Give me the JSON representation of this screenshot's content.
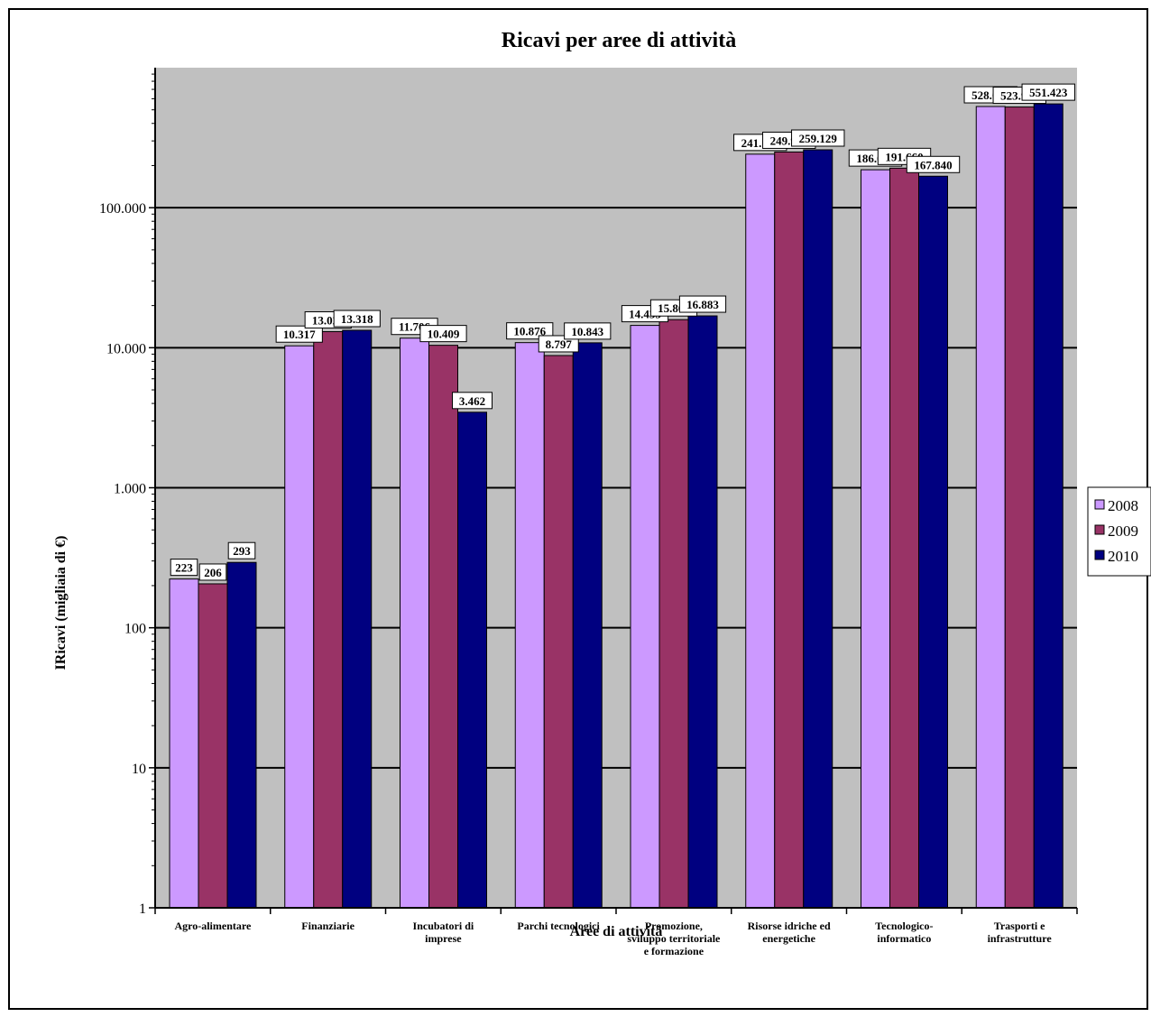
{
  "chart_data": {
    "type": "bar",
    "title": "Ricavi per aree di  attività",
    "xlabel": "Aree di attività",
    "ylabel": "IRicavi (migliaia di €)",
    "yscale": "log",
    "ylim": [
      1,
      1000000
    ],
    "yticks": [
      1,
      10,
      100,
      1000,
      10000,
      100000
    ],
    "ytick_labels": [
      "1",
      "10",
      "100",
      "1.000",
      "10.000",
      "100.000"
    ],
    "grid": true,
    "legend_position": "right",
    "categories": [
      [
        "Agro-alimentare"
      ],
      [
        "Finanziarie"
      ],
      [
        "Incubatori di",
        "imprese"
      ],
      [
        "Parchi tecnologici"
      ],
      [
        "Promozione,",
        "sviluppo territoriale",
        "e formazione"
      ],
      [
        "Risorse idriche ed",
        "energetiche"
      ],
      [
        "Tecnologico-",
        "informatico"
      ],
      [
        "Trasporti e",
        "infrastrutture"
      ]
    ],
    "series": [
      {
        "name": "2008",
        "color": "#cc99ff",
        "values": [
          223,
          10317,
          11706,
          10876,
          14435,
          241181,
          186649,
          528097
        ],
        "labels": [
          "223",
          "10.317",
          "11.706",
          "10.876",
          "14.435",
          "241.181",
          "186.649",
          "528.097"
        ]
      },
      {
        "name": "2009",
        "color": "#993366",
        "values": [
          206,
          13026,
          10409,
          8797,
          15868,
          249917,
          191660,
          523981
        ],
        "labels": [
          "206",
          "13.026",
          "10.409",
          "8.797",
          "15.868",
          "249.917",
          "191.660",
          "523.981"
        ]
      },
      {
        "name": "2010",
        "color": "#000080",
        "values": [
          293,
          13318,
          3462,
          10843,
          16883,
          259129,
          167840,
          551423
        ],
        "labels": [
          "293",
          "13.318",
          "3.462",
          "10.843",
          "16.883",
          "259.129",
          "167.840",
          "551.423"
        ]
      }
    ],
    "colors": {
      "plot_background": "#c0c0c0",
      "gridline": "#000000",
      "bar_outline": "#000000"
    }
  }
}
